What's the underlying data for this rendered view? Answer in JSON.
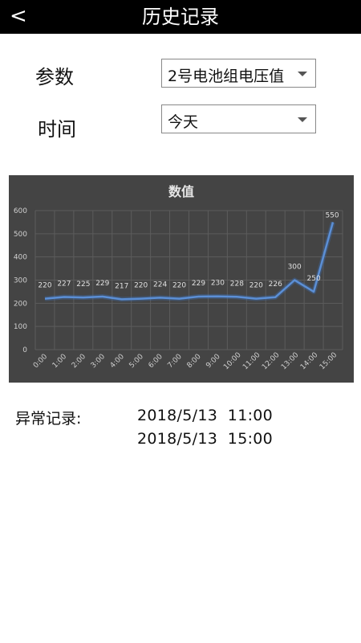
{
  "header": {
    "back_icon": "chevron-left",
    "back_glyph": "<",
    "title": "历史记录"
  },
  "filters": {
    "param_label": "参数",
    "param_value": "2号电池组电压值",
    "time_label": "时间",
    "time_value": "今天"
  },
  "chart_data": {
    "type": "line",
    "title": "数值",
    "categories": [
      "0:00",
      "1:00",
      "2:00",
      "3:00",
      "4:00",
      "5:00",
      "6:00",
      "7:00",
      "8:00",
      "9:00",
      "10:00",
      "11:00",
      "12:00",
      "13:00",
      "14:00",
      "15:00"
    ],
    "values": [
      220,
      227,
      225,
      229,
      217,
      220,
      224,
      220,
      229,
      230,
      228,
      220,
      226,
      300,
      250,
      550
    ],
    "ylim": [
      0,
      600
    ],
    "yticks": [
      0,
      100,
      200,
      300,
      400,
      500,
      600
    ],
    "grid": true,
    "line_color": "#5b8fd6"
  },
  "records": {
    "label": "异常记录:",
    "items": [
      "2018/5/13  11:00",
      "2018/5/13  15:00"
    ]
  }
}
